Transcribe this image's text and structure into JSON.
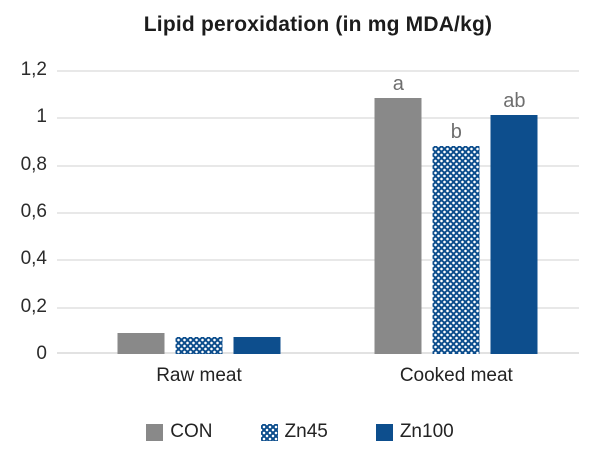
{
  "title": "Lipid peroxidation (in mg MDA/kg)",
  "colors": {
    "gray_series": "#898989",
    "blue_series": "#0d4e8d",
    "gridline": "#e8e8e8",
    "annotation_text": "#6e6e6e",
    "axis_text": "#2b2b2b"
  },
  "chart_data": {
    "type": "bar",
    "title": "Lipid peroxidation (in mg MDA/kg)",
    "categories": [
      "Raw meat",
      "Cooked meat"
    ],
    "series": [
      {
        "name": "CON",
        "fill": "gray-solid",
        "values": [
          0.09,
          1.08
        ],
        "bar_labels": [
          "",
          "a"
        ]
      },
      {
        "name": "Zn45",
        "fill": "blue-dotted",
        "values": [
          0.07,
          0.88
        ],
        "bar_labels": [
          "",
          "b"
        ]
      },
      {
        "name": "Zn100",
        "fill": "blue-solid",
        "values": [
          0.07,
          1.01
        ],
        "bar_labels": [
          "",
          "ab"
        ]
      }
    ],
    "ylim": [
      0,
      1.2
    ],
    "ytick_labels": [
      "1,2",
      "1",
      "0,8",
      "0,6",
      "0,4",
      "0,2",
      "0"
    ],
    "decimal_separator": ",",
    "grid": "horizontal",
    "legend_position": "bottom",
    "group_centers_pct": [
      27.2,
      76.5
    ]
  }
}
